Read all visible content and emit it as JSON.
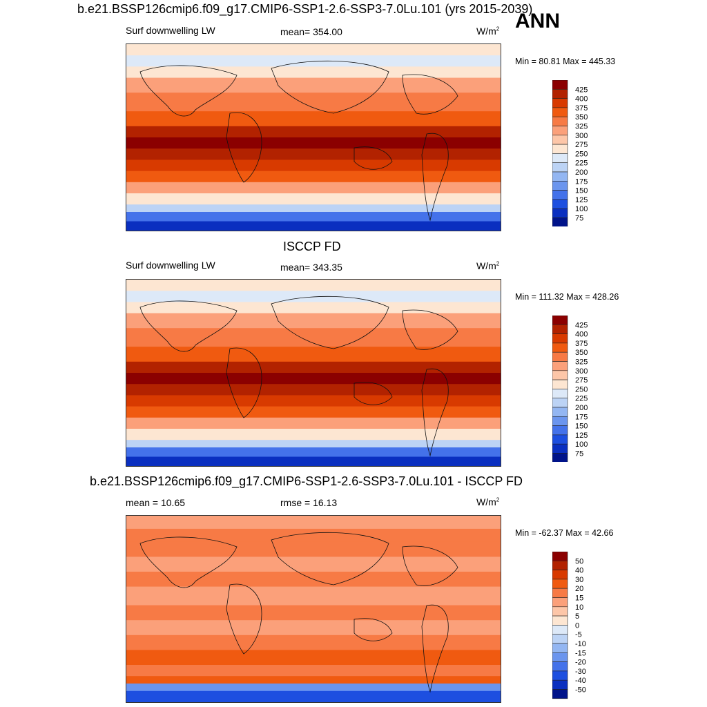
{
  "annotation": "ANN",
  "panels": [
    {
      "title": "b.e21.BSSP126cmip6.f09_g17.CMIP6-SSP1-2.6-SSP3-7.0Lu.101 (yrs 2015-2039)",
      "variable": "Surf downwelling LW",
      "stat": "mean= 354.00",
      "units": "W/m",
      "units_sup": "2",
      "minmax": "Min =  80.81 Max = 445.33"
    },
    {
      "title": "ISCCP FD",
      "variable": "Surf downwelling LW",
      "stat": "mean= 343.35",
      "units": "W/m",
      "units_sup": "2",
      "minmax": "Min = 111.32 Max = 428.26"
    },
    {
      "title": "b.e21.BSSP126cmip6.f09_g17.CMIP6-SSP1-2.6-SSP3-7.0Lu.101 - ISCCP FD",
      "variable": "mean =  10.65",
      "stat": "rmse =  16.13",
      "units": "W/m",
      "units_sup": "2",
      "minmax": "Min = -62.37 Max =  42.66"
    }
  ],
  "chart_data": [
    {
      "type": "heatmap",
      "field": "Surf downwelling LW (model)",
      "colorbar_levels": [
        425,
        400,
        375,
        350,
        325,
        300,
        275,
        250,
        225,
        200,
        175,
        150,
        125,
        100,
        75
      ],
      "colorbar_colors": [
        "#8b0000",
        "#b22200",
        "#d83a00",
        "#f05a10",
        "#f77a45",
        "#fba07a",
        "#fdc6a8",
        "#fde6d2",
        "#dde9f8",
        "#bcd3f5",
        "#93b6f2",
        "#6b95ee",
        "#4472ea",
        "#1d4fe0",
        "#0a2fc0",
        "#00138a"
      ],
      "mean": 354.0,
      "min": 80.81,
      "max": 445.33
    },
    {
      "type": "heatmap",
      "field": "Surf downwelling LW (ISCCP FD)",
      "colorbar_levels": [
        425,
        400,
        375,
        350,
        325,
        300,
        275,
        250,
        225,
        200,
        175,
        150,
        125,
        100,
        75
      ],
      "colorbar_colors": [
        "#8b0000",
        "#b22200",
        "#d83a00",
        "#f05a10",
        "#f77a45",
        "#fba07a",
        "#fdc6a8",
        "#fde6d2",
        "#dde9f8",
        "#bcd3f5",
        "#93b6f2",
        "#6b95ee",
        "#4472ea",
        "#1d4fe0",
        "#0a2fc0",
        "#00138a"
      ],
      "mean": 343.35,
      "min": 111.32,
      "max": 428.26
    },
    {
      "type": "heatmap",
      "field": "difference",
      "colorbar_levels": [
        50,
        40,
        30,
        20,
        15,
        10,
        5,
        0,
        -5,
        -10,
        -15,
        -20,
        -30,
        -40,
        -50
      ],
      "colorbar_colors": [
        "#8b0000",
        "#b22200",
        "#d83a00",
        "#f05a10",
        "#f77a45",
        "#fba07a",
        "#fdc6a8",
        "#fde6d2",
        "#dde9f8",
        "#bcd3f5",
        "#93b6f2",
        "#6b95ee",
        "#4472ea",
        "#1d4fe0",
        "#0a2fc0",
        "#00138a"
      ],
      "mean": 10.65,
      "rmse": 16.13,
      "min": -62.37,
      "max": 42.66
    }
  ]
}
